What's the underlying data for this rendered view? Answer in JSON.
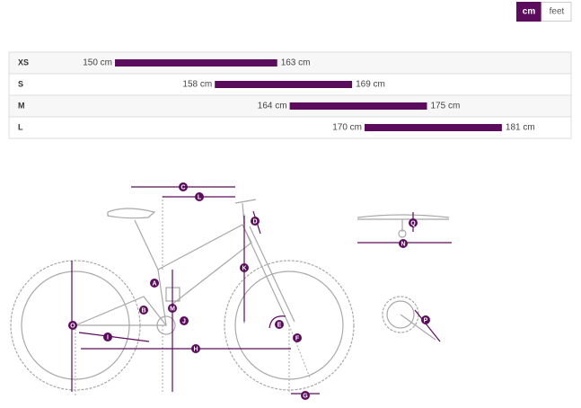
{
  "units": [
    "cm",
    "feet"
  ],
  "sizes": [
    {
      "size": "XS",
      "min": {
        "value": 150,
        "label": "150 cm"
      },
      "max": {
        "value": 163,
        "label": "163 cm"
      }
    },
    {
      "size": "S",
      "min": {
        "value": 158,
        "label": "158 cm"
      },
      "max": {
        "value": 169,
        "label": "169 cm"
      }
    },
    {
      "size": "M",
      "min": {
        "value": 164,
        "label": "164 cm"
      },
      "max": {
        "value": 175,
        "label": "175 cm"
      }
    },
    {
      "size": "L",
      "min": {
        "value": 170,
        "label": "170 cm"
      },
      "max": {
        "value": 181,
        "label": "181 cm"
      }
    }
  ],
  "diagram": {
    "labels": [
      "C",
      "L",
      "D",
      "A",
      "B",
      "M",
      "J",
      "K",
      "E",
      "F",
      "O",
      "I",
      "H",
      "G",
      "Q",
      "N",
      "P"
    ]
  }
}
